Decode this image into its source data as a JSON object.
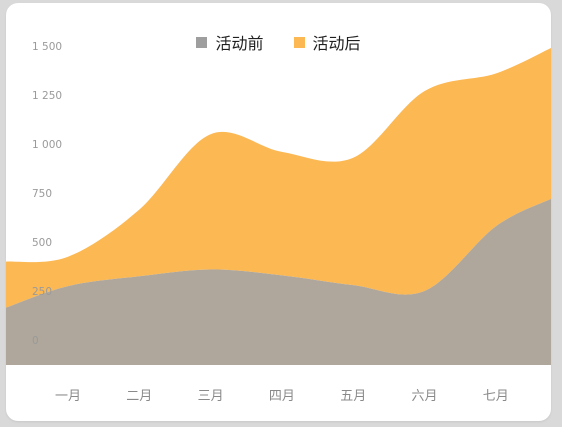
{
  "chart_data": {
    "type": "area",
    "stacked": true,
    "smooth": true,
    "categories": [
      "一月",
      "二月",
      "三月",
      "四月",
      "五月",
      "六月",
      "七月"
    ],
    "series": [
      {
        "name": "活动前",
        "values": [
          275,
          325,
          360,
          330,
          280,
          250,
          580
        ],
        "color": "#afa79b",
        "legend_color": "#9e9e9e"
      },
      {
        "name": "活动后",
        "values": [
          150,
          340,
          690,
          630,
          650,
          1020,
          780
        ],
        "color": "#fcb853",
        "legend_color": "#fcb853"
      }
    ],
    "series_left_edge": [
      165,
      235
    ],
    "series_right_edge": [
      720,
      770
    ],
    "yticks": [
      "1 500",
      "1 250",
      "1 000",
      "750",
      "500",
      "250",
      "0"
    ],
    "ytick_values": [
      1500,
      1250,
      1000,
      750,
      500,
      250,
      0
    ],
    "ylim": [
      0,
      1500
    ],
    "legend_position": "top-center",
    "grid": false
  }
}
